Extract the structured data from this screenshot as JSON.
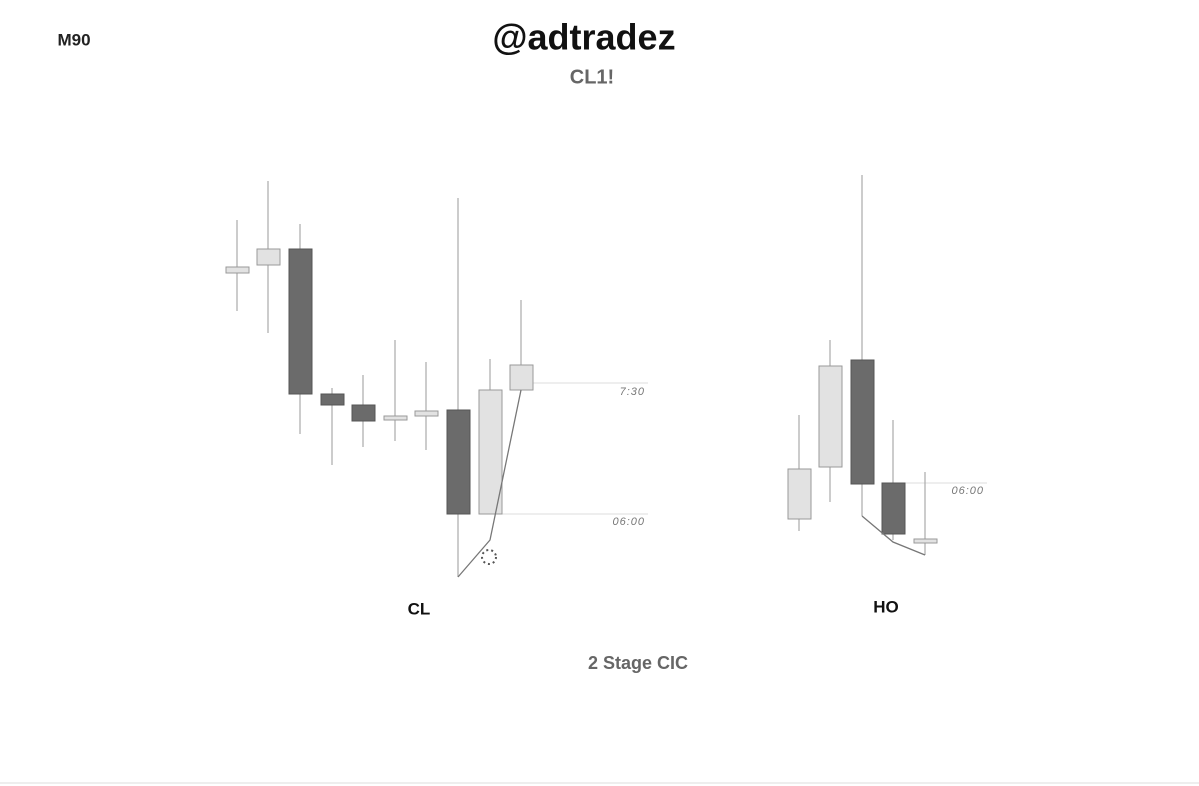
{
  "header": {
    "label": "M90",
    "title": "@adtradez",
    "subtitle": "CL1!"
  },
  "panels": [
    {
      "label": "CL",
      "annotations": [
        "7:30",
        "06:00"
      ]
    },
    {
      "label": "HO",
      "annotations": [
        "06:00"
      ]
    }
  ],
  "caption": "2 Stage CIC"
}
